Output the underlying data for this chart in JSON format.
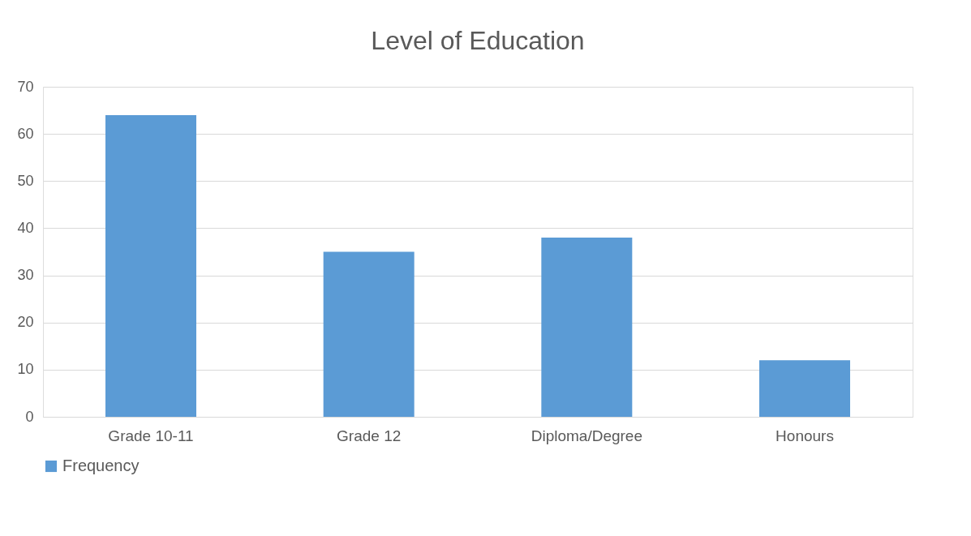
{
  "chart_data": {
    "type": "bar",
    "title": "Level of Education",
    "categories": [
      "Grade 10-11",
      "Grade 12",
      "Diploma/Degree",
      "Honours"
    ],
    "series": [
      {
        "name": "Frequency",
        "color": "#5b9bd5",
        "values": [
          64,
          35,
          38,
          12
        ]
      }
    ],
    "ylim": [
      0,
      70
    ],
    "yticks": [
      0,
      10,
      20,
      30,
      40,
      50,
      60,
      70
    ],
    "grid": "y",
    "legend": "bottom"
  }
}
